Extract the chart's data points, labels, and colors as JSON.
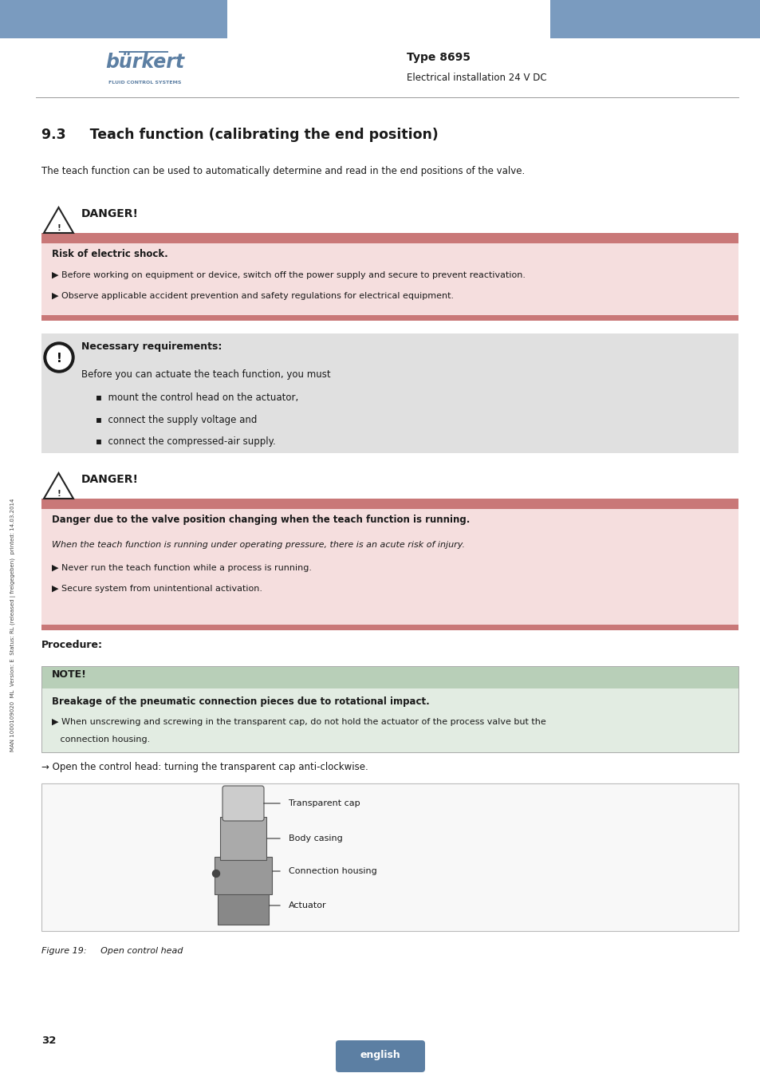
{
  "page_width": 9.54,
  "page_height": 13.5,
  "bg_color": "#ffffff",
  "header_bar_color": "#7a9bbf",
  "type_text": "Type 8695",
  "subtitle_text": "Electrical installation 24 V DC",
  "section_title": "9.3     Teach function (calibrating the end position)",
  "intro_text": "The teach function can be used to automatically determine and read in the end positions of the valve.",
  "danger1_header_color": "#c97878",
  "danger1_bg_color": "#f5dede",
  "danger1_bold": "Risk of electric shock.",
  "danger1_bullet1": "▶ Before working on equipment or device, switch off the power supply and secure to prevent reactivation.",
  "danger1_bullet2": "▶ Observe applicable accident prevention and safety regulations for electrical equipment.",
  "note_bg_color": "#e0e0e0",
  "note_title": "Necessary requirements:",
  "note_intro": "Before you can actuate the teach function, you must",
  "note_bullet1": "▪  mount the control head on the actuator,",
  "note_bullet2": "▪  connect the supply voltage and",
  "note_bullet3": "▪  connect the compressed-air supply.",
  "danger2_header_color": "#c97878",
  "danger2_bg_color": "#f5dede",
  "danger2_bold": "Danger due to the valve position changing when the teach function is running.",
  "danger2_text": "When the teach function is running under operating pressure, there is an acute risk of injury.",
  "danger2_bullet1": "▶ Never run the teach function while a process is running.",
  "danger2_bullet2": "▶ Secure system from unintentional activation.",
  "procedure_text": "Procedure:",
  "note2_bold": "Breakage of the pneumatic connection pieces due to rotational impact.",
  "note2_bullet_line1": "▶ When unscrewing and screwing in the transparent cap, do not hold the actuator of the process valve but the",
  "note2_bullet_line2": "   connection housing.",
  "arrow_text": "→ Open the control head: turning the transparent cap anti-clockwise.",
  "figure_caption": "Figure 19:     Open control head",
  "figure_labels": [
    "Transparent cap",
    "Body casing",
    "Connection housing",
    "Actuator"
  ],
  "page_number": "32",
  "footer_text": "english",
  "sidebar_text": "MAN 1000109020  ML  Version: E  Status: RL (released | freigegeben)  printed: 14.03.2014",
  "line_color": "#999999",
  "text_color": "#1a1a1a"
}
